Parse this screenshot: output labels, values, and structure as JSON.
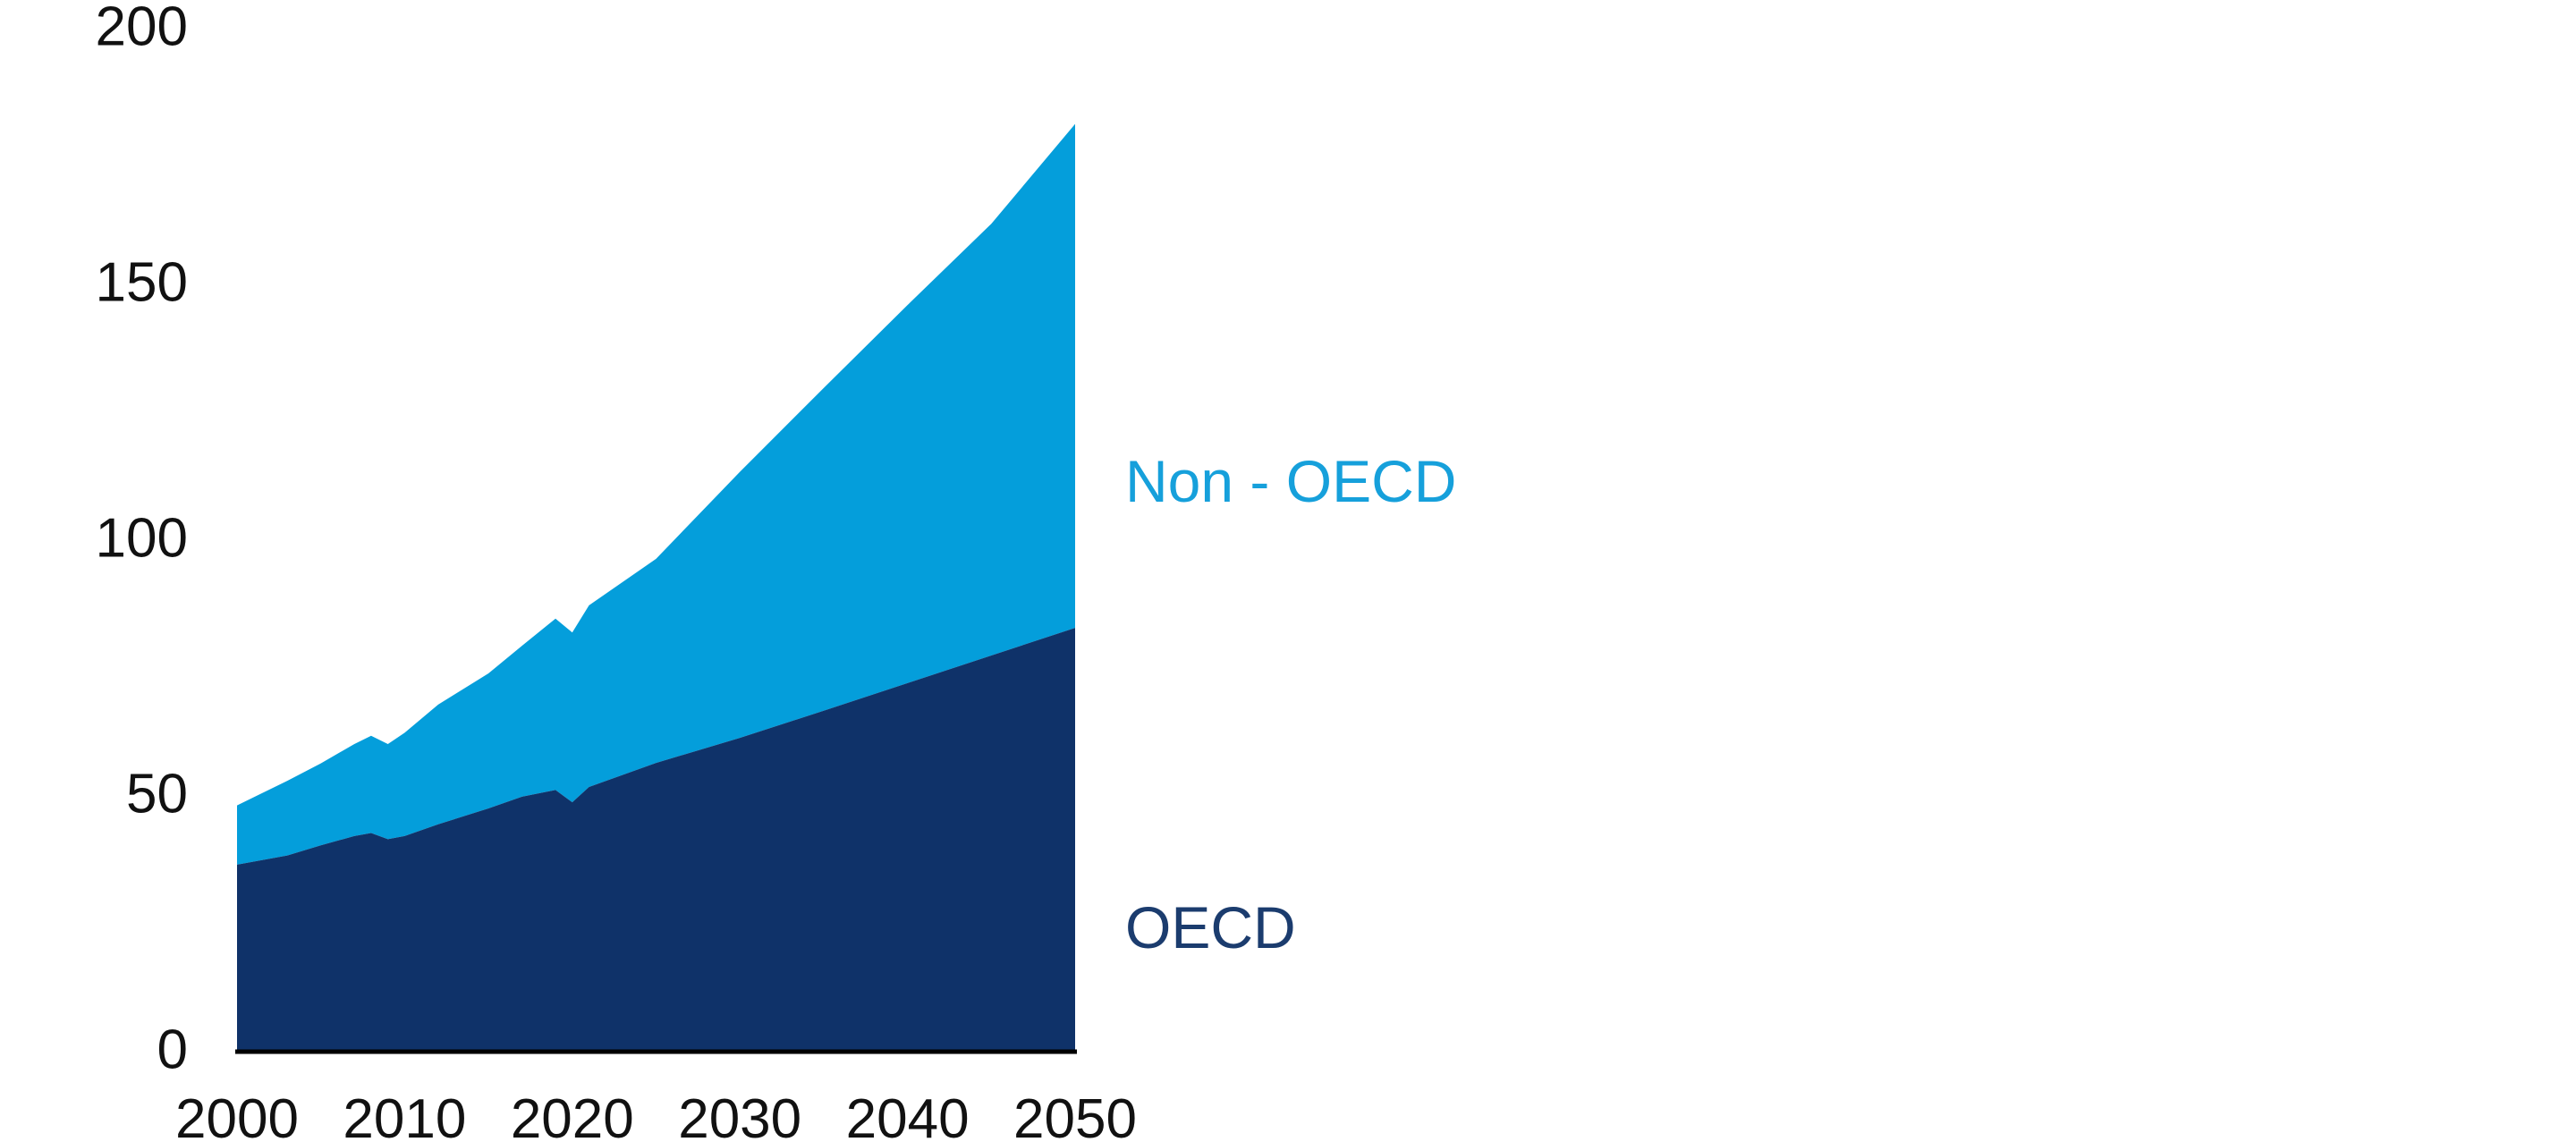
{
  "page": {
    "background": "#FFFFFF"
  },
  "chart_data": {
    "type": "area",
    "stacked": true,
    "title": "",
    "xlabel": "",
    "ylabel": "",
    "x": [
      2000,
      2003,
      2005,
      2007,
      2008,
      2009,
      2010,
      2012,
      2015,
      2017,
      2019,
      2020,
      2021,
      2025,
      2030,
      2035,
      2040,
      2045,
      2050
    ],
    "series": [
      {
        "name": "OECD",
        "color": "#0F3269",
        "label_color": "#1B3C6E",
        "values": [
          36.2,
          38.0,
          40.0,
          41.8,
          42.4,
          41.2,
          41.8,
          44.1,
          47.2,
          49.5,
          50.8,
          48.4,
          51.4,
          56.1,
          61.0,
          66.3,
          71.7,
          77.1,
          82.5
        ]
      },
      {
        "name": "Non - OECD",
        "color": "#049EDB",
        "label_color": "#16A0DB",
        "values": [
          11.6,
          14.6,
          16.0,
          18.0,
          19.0,
          18.6,
          20.2,
          23.4,
          26.4,
          29.5,
          33.5,
          33.2,
          35.5,
          39.9,
          52.0,
          63.1,
          73.9,
          84.4,
          98.5
        ]
      }
    ],
    "stacked_totals": [
      47.8,
      52.6,
      56.0,
      59.8,
      61.4,
      59.8,
      62.0,
      67.5,
      73.6,
      79.0,
      84.3,
      81.6,
      86.9,
      96.0,
      113.0,
      129.4,
      145.6,
      161.5,
      181.0
    ],
    "xlim": [
      2000,
      2050
    ],
    "ylim": [
      0,
      200
    ],
    "xticks": [
      "2000",
      "2010",
      "2020",
      "2030",
      "2040",
      "2050"
    ],
    "yticks": [
      "0",
      "50",
      "100",
      "150",
      "200"
    ],
    "grid": false,
    "legend_position": "right-of-plot, inline with each band",
    "axis_line_color": "#000000",
    "tick_label_color": "#111111"
  }
}
